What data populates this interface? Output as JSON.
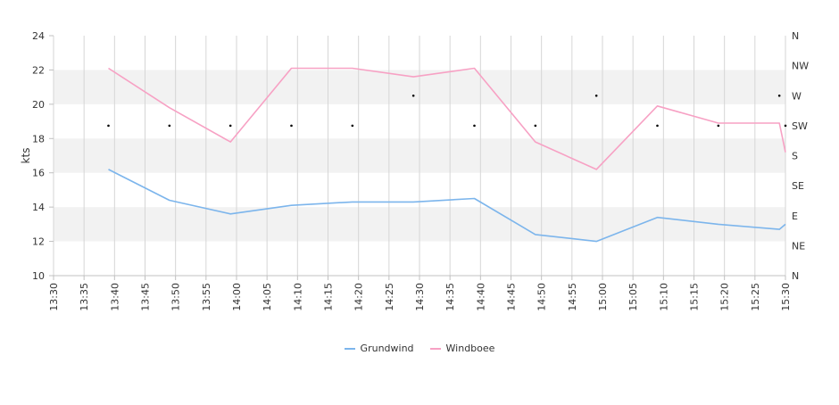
{
  "chart_data": {
    "type": "line",
    "ylabel": "kts",
    "ylim": [
      10,
      24
    ],
    "y_ticks": [
      10,
      12,
      14,
      16,
      18,
      20,
      22,
      24
    ],
    "x_ticks": [
      "13:30",
      "13:35",
      "13:40",
      "13:45",
      "13:50",
      "13:55",
      "14:00",
      "14:05",
      "14:10",
      "14:15",
      "14:20",
      "14:25",
      "14:30",
      "14:35",
      "14:40",
      "14:45",
      "14:50",
      "14:55",
      "15:00",
      "15:05",
      "15:10",
      "15:15",
      "15:20",
      "15:25",
      "15:30"
    ],
    "direction_axis": [
      "N",
      "NE",
      "E",
      "SE",
      "S",
      "SW",
      "W",
      "NW",
      "N"
    ],
    "alternating_bands": true,
    "series": [
      {
        "name": "Grundwind",
        "color": "#7cb5ec",
        "points": [
          [
            "13:39",
            16.2
          ],
          [
            "13:49",
            14.4
          ],
          [
            "13:59",
            13.6
          ],
          [
            "14:09",
            14.1
          ],
          [
            "14:19",
            14.3
          ],
          [
            "14:29",
            14.3
          ],
          [
            "14:39",
            14.5
          ],
          [
            "14:49",
            12.4
          ],
          [
            "14:59",
            12.0
          ],
          [
            "15:09",
            13.4
          ],
          [
            "15:19",
            13.0
          ],
          [
            "15:29",
            12.7
          ],
          [
            "15:30",
            13.0
          ]
        ]
      },
      {
        "name": "Windboee",
        "color": "#f7a1c4",
        "points": [
          [
            "13:39",
            22.1
          ],
          [
            "13:49",
            19.8
          ],
          [
            "13:59",
            17.8
          ],
          [
            "14:09",
            22.1
          ],
          [
            "14:19",
            22.1
          ],
          [
            "14:29",
            21.6
          ],
          [
            "14:39",
            22.1
          ],
          [
            "14:49",
            17.8
          ],
          [
            "14:59",
            16.2
          ],
          [
            "15:09",
            19.9
          ],
          [
            "15:19",
            18.9
          ],
          [
            "15:29",
            18.9
          ],
          [
            "15:30",
            17.2
          ]
        ]
      }
    ],
    "direction_points": [
      [
        "13:39",
        "SW"
      ],
      [
        "13:49",
        "SW"
      ],
      [
        "13:59",
        "SW"
      ],
      [
        "14:09",
        "SW"
      ],
      [
        "14:19",
        "SW"
      ],
      [
        "14:29",
        "W"
      ],
      [
        "14:39",
        "SW"
      ],
      [
        "14:49",
        "SW"
      ],
      [
        "14:59",
        "W"
      ],
      [
        "15:09",
        "SW"
      ],
      [
        "15:19",
        "SW"
      ],
      [
        "15:29",
        "W"
      ],
      [
        "15:30",
        "SW"
      ]
    ]
  }
}
